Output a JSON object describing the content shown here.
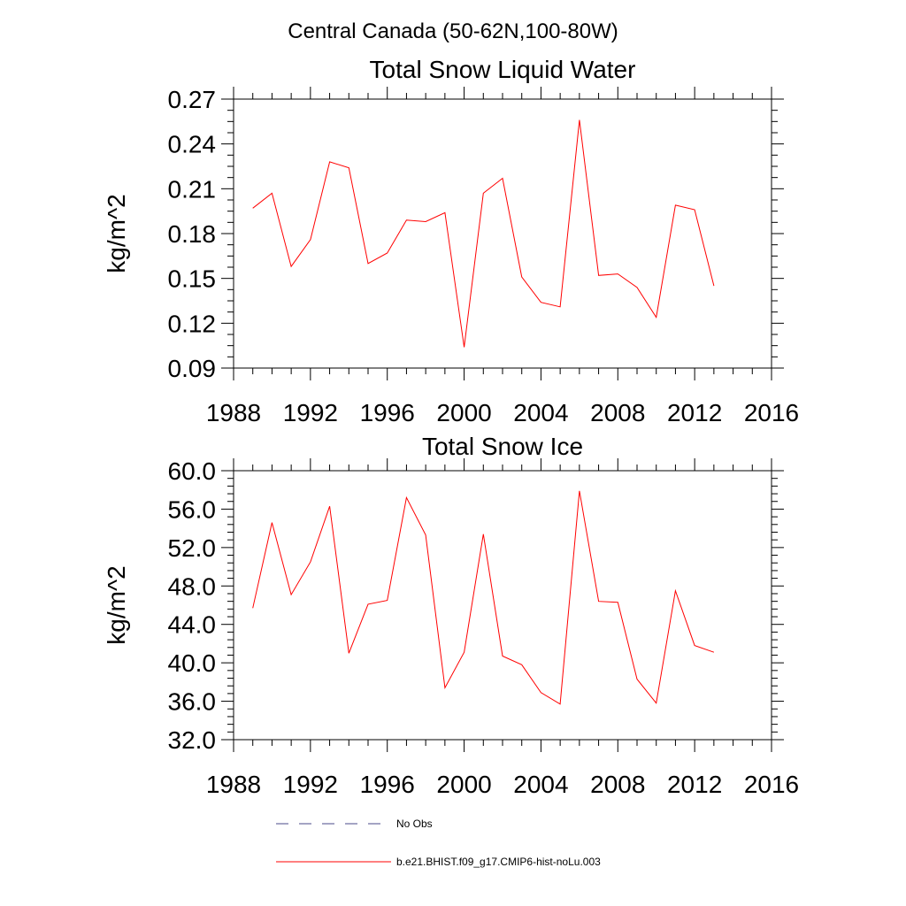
{
  "figure_title": "Central Canada (50-62N,100-80W)",
  "chart_data": [
    {
      "type": "line",
      "title": "Total Snow Liquid Water",
      "xlabel": "",
      "ylabel": "kg/m^2",
      "xlim": [
        1988,
        2016
      ],
      "ylim": [
        0.09,
        0.27
      ],
      "xticks": [
        "1988",
        "1992",
        "1996",
        "2000",
        "2004",
        "2008",
        "2012",
        "2016"
      ],
      "yticks": [
        "0.09",
        "0.12",
        "0.15",
        "0.18",
        "0.21",
        "0.24",
        "0.27"
      ],
      "x": [
        1989,
        1990,
        1991,
        1992,
        1993,
        1994,
        1995,
        1996,
        1997,
        1998,
        1999,
        2000,
        2001,
        2002,
        2003,
        2004,
        2005,
        2006,
        2007,
        2008,
        2009,
        2010,
        2011,
        2012,
        2013
      ],
      "series": [
        {
          "name": "b.e21.BHIST.f09_g17.CMIP6-hist-noLu.003",
          "color": "#ff0000",
          "values": [
            0.197,
            0.207,
            0.158,
            0.176,
            0.228,
            0.224,
            0.16,
            0.167,
            0.189,
            0.188,
            0.194,
            0.104,
            0.207,
            0.217,
            0.151,
            0.134,
            0.131,
            0.256,
            0.152,
            0.153,
            0.144,
            0.124,
            0.199,
            0.196,
            0.145
          ]
        }
      ]
    },
    {
      "type": "line",
      "title": "Total Snow Ice",
      "xlabel": "",
      "ylabel": "kg/m^2",
      "xlim": [
        1988,
        2016
      ],
      "ylim": [
        32.0,
        60.0
      ],
      "xticks": [
        "1988",
        "1992",
        "1996",
        "2000",
        "2004",
        "2008",
        "2012",
        "2016"
      ],
      "yticks": [
        "32.0",
        "36.0",
        "40.0",
        "44.0",
        "48.0",
        "52.0",
        "56.0",
        "60.0"
      ],
      "x": [
        1989,
        1990,
        1991,
        1992,
        1993,
        1994,
        1995,
        1996,
        1997,
        1998,
        1999,
        2000,
        2001,
        2002,
        2003,
        2004,
        2005,
        2006,
        2007,
        2008,
        2009,
        2010,
        2011,
        2012,
        2013
      ],
      "series": [
        {
          "name": "b.e21.BHIST.f09_g17.CMIP6-hist-noLu.003",
          "color": "#ff0000",
          "values": [
            45.7,
            54.6,
            47.1,
            50.5,
            56.3,
            41.0,
            46.1,
            46.5,
            57.2,
            53.3,
            37.4,
            41.1,
            53.4,
            40.7,
            39.8,
            36.9,
            35.7,
            57.9,
            46.4,
            46.3,
            38.3,
            35.8,
            47.5,
            41.8,
            41.1
          ]
        }
      ]
    }
  ],
  "legend": [
    {
      "label": "No Obs",
      "style": "dashed",
      "color": "#4a4a8a"
    },
    {
      "label": "b.e21.BHIST.f09_g17.CMIP6-hist-noLu.003",
      "style": "solid",
      "color": "#ff0000"
    }
  ]
}
